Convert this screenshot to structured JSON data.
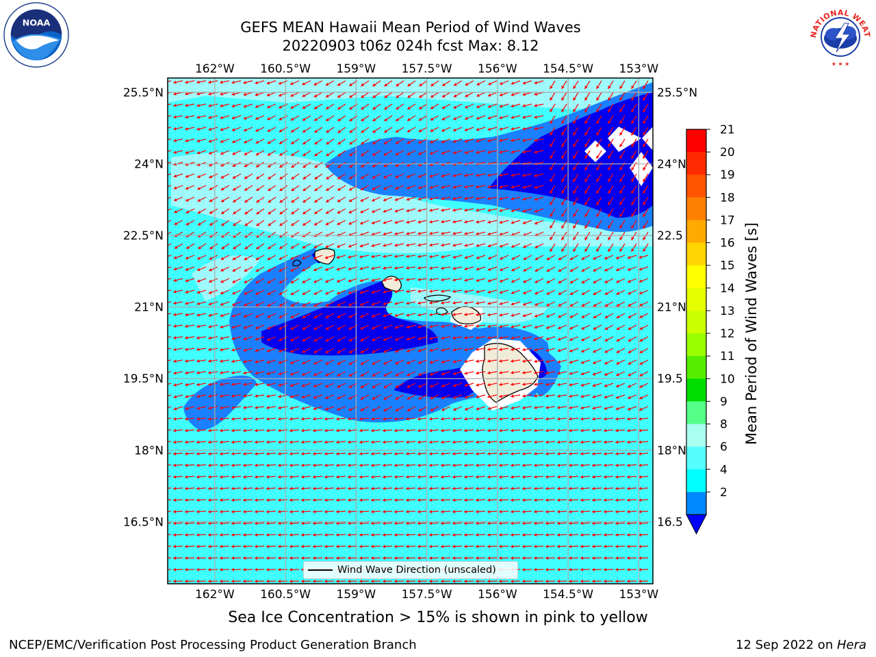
{
  "title": {
    "line1": "GEFS MEAN Hawaii Mean Period of Wind Waves",
    "line2": "20220903 t06z 024h fcst   Max: 8.12"
  },
  "axes": {
    "lon_ticks": [
      "162°W",
      "160.5°W",
      "159°W",
      "157.5°W",
      "156°W",
      "154.5°W",
      "153°W"
    ],
    "lon_values": [
      -162,
      -160.5,
      -159,
      -157.5,
      -156,
      -154.5,
      -153
    ],
    "lat_ticks_left": [
      "25.5°N",
      "24°N",
      "22.5°N",
      "21°N",
      "19.5°N",
      "18°N",
      "16.5°N"
    ],
    "lat_ticks_right": [
      "25.5°N",
      "24°N",
      "22.5",
      "21°N",
      "19.5",
      "18°N",
      "16.5"
    ],
    "lat_values": [
      25.5,
      24,
      22.5,
      21,
      19.5,
      18,
      16.5
    ],
    "lon_range": [
      -163,
      -152.7
    ],
    "lat_range": [
      15.2,
      25.8
    ],
    "grid": true
  },
  "colorbar": {
    "label": "Mean Period of Wind Waves [s]",
    "ticks": [
      "21",
      "20",
      "19",
      "18",
      "17",
      "16",
      "15",
      "14",
      "13",
      "12",
      "11",
      "10",
      "9",
      "8",
      "6",
      "4",
      "2"
    ],
    "colors": [
      "#ff0000",
      "#ff2a00",
      "#ff5500",
      "#ff8000",
      "#ffaa00",
      "#ffd400",
      "#ffff00",
      "#e6ff00",
      "#ccff00",
      "#99ff00",
      "#55ee00",
      "#00dd00",
      "#55ff88",
      "#a8fff0",
      "#55ffff",
      "#00ffff",
      "#0088ff"
    ],
    "under_color": "#0000ff"
  },
  "map_colors": {
    "ocean_base": "#40ffff",
    "light_band": "#9ffbfb",
    "mid_blue": "#1a80ff",
    "dark_blue": "#0000ee",
    "land": "#f0ecd8",
    "arrow": "#ff0000"
  },
  "legend": {
    "label": "Wind Wave Direction (unscaled)"
  },
  "ice_note": "Sea Ice Concentration > 15% is shown in pink to yellow",
  "footer": {
    "left": "NCEP/EMC/Verification Post Processing Product Generation Branch",
    "right_prefix": "12 Sep 2022 on ",
    "right_host": "Hera"
  },
  "logos": {
    "noaa": "NOAA",
    "nws": "NATIONAL WEATHER SERVICE"
  }
}
